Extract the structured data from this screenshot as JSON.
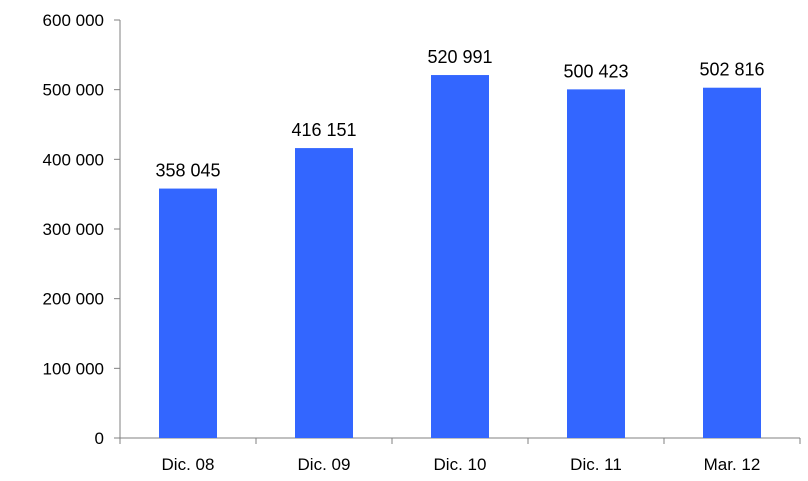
{
  "chart_data": {
    "type": "bar",
    "title": "",
    "xlabel": "",
    "ylabel": "",
    "categories": [
      "Dic. 08",
      "Dic. 09",
      "Dic. 10",
      "Dic. 11",
      "Mar. 12"
    ],
    "values": [
      358045,
      416151,
      520991,
      500423,
      502816
    ],
    "value_labels": [
      "358 045",
      "416 151",
      "520 991",
      "500 423",
      "502 816"
    ],
    "ylim": [
      0,
      600000
    ],
    "yticks": [
      0,
      100000,
      200000,
      300000,
      400000,
      500000,
      600000
    ],
    "ytick_labels": [
      "0",
      "100 000",
      "200 000",
      "300 000",
      "400 000",
      "500 000",
      "600 000"
    ],
    "grid": false,
    "legend": "none",
    "colors": {
      "bar": "#3366FF",
      "axis": "#808080",
      "text": "#000000"
    }
  }
}
